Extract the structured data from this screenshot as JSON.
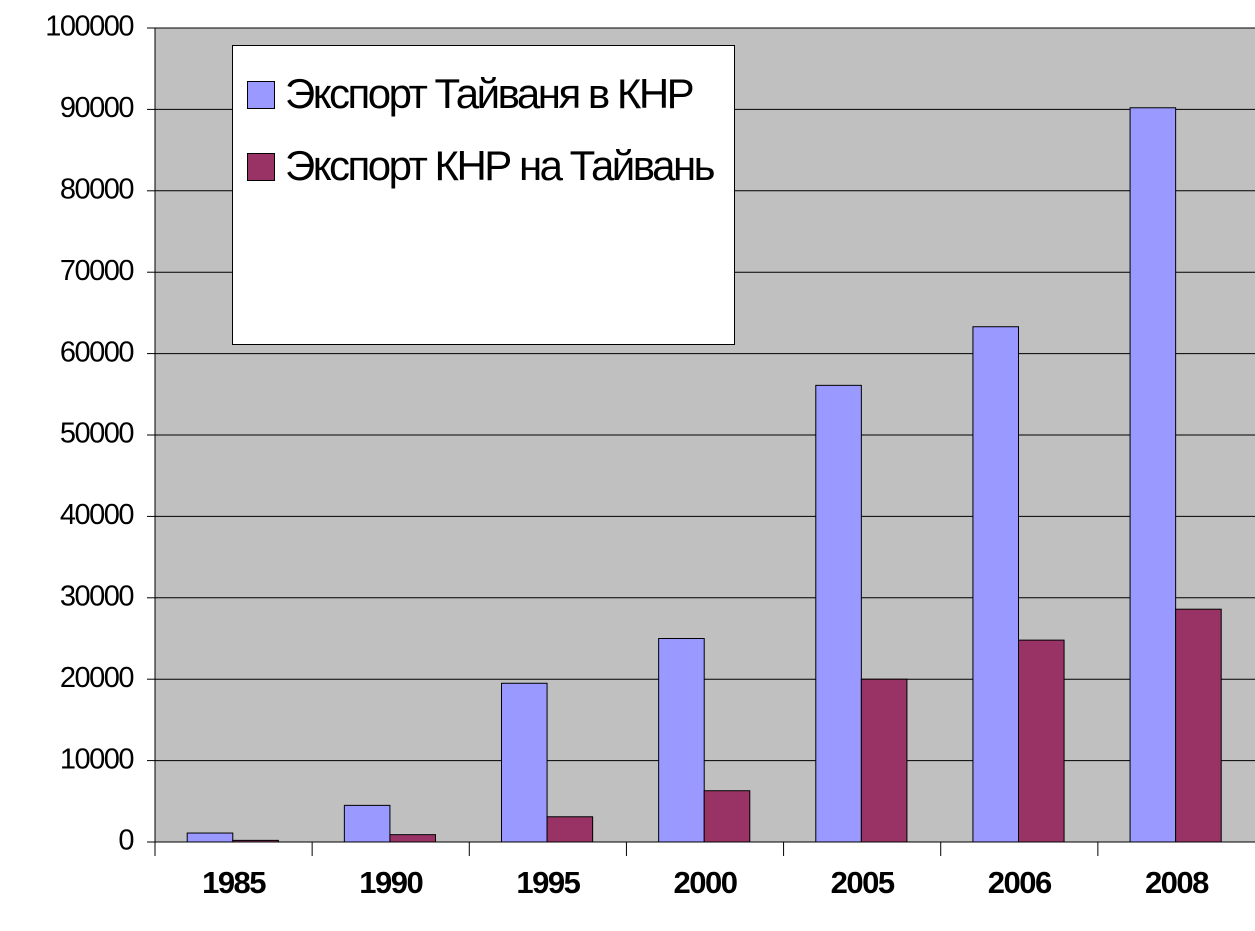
{
  "chart_data": {
    "type": "bar",
    "categories": [
      "1985",
      "1990",
      "1995",
      "2000",
      "2005",
      "2006",
      "2008"
    ],
    "series": [
      {
        "name": "Экспорт Тайваня в КНР",
        "color": "#9999ff",
        "values": [
          1100,
          4500,
          19500,
          25000,
          56100,
          63300,
          90200
        ]
      },
      {
        "name": "Экспорт КНР на Тайвань",
        "color": "#993366",
        "values": [
          200,
          900,
          3100,
          6300,
          20000,
          24800,
          28600
        ]
      }
    ],
    "ylim": [
      0,
      100000
    ],
    "yticks": [
      0,
      10000,
      20000,
      30000,
      40000,
      50000,
      60000,
      70000,
      80000,
      90000,
      100000
    ],
    "grid": true,
    "legend": "upper left"
  }
}
